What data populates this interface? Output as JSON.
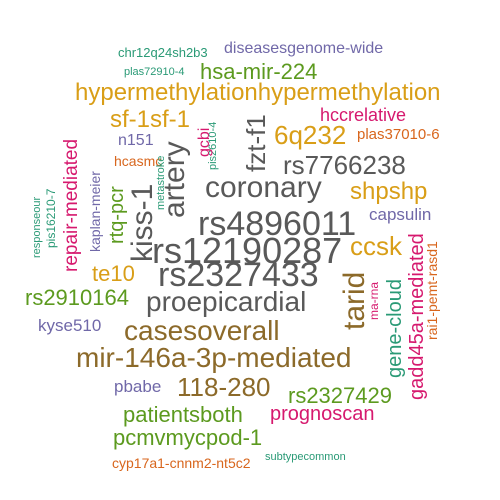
{
  "colors": {
    "darkgray": "#595959",
    "brown": "#8c6a2a",
    "gold": "#d99e17",
    "green": "#5c9a1f",
    "magenta": "#d6196e",
    "orange": "#d8661d",
    "purple": "#7068a8",
    "teal": "#2a9a76"
  },
  "words": [
    {
      "text": "chr12q24sh2b3",
      "color": "teal"
    },
    {
      "text": "diseasesgenome-wide",
      "color": "purple"
    },
    {
      "text": "plas72910-4",
      "color": "teal"
    },
    {
      "text": "hsa-mir-224",
      "color": "green"
    },
    {
      "text": "hypermethylationhypermethylation",
      "color": "gold"
    },
    {
      "text": "sf-1sf-1",
      "color": "gold"
    },
    {
      "text": "hccrelative",
      "color": "magenta"
    },
    {
      "text": "6q232",
      "color": "gold"
    },
    {
      "text": "plas37010-6",
      "color": "orange"
    },
    {
      "text": "repair-mediated",
      "color": "magenta"
    },
    {
      "text": "kaplan-meier",
      "color": "purple"
    },
    {
      "text": "n151",
      "color": "purple"
    },
    {
      "text": "hcasmc",
      "color": "orange"
    },
    {
      "text": "metastroke",
      "color": "teal"
    },
    {
      "text": "pis2610-4",
      "color": "teal"
    },
    {
      "text": "gcbi",
      "color": "magenta"
    },
    {
      "text": "fzt-f1",
      "color": "darkgray"
    },
    {
      "text": "artery",
      "color": "darkgray"
    },
    {
      "text": "coronary",
      "color": "darkgray"
    },
    {
      "text": "rs7766238",
      "color": "darkgray"
    },
    {
      "text": "shpshp",
      "color": "gold"
    },
    {
      "text": "responseour",
      "color": "teal"
    },
    {
      "text": "pis16210-7",
      "color": "teal"
    },
    {
      "text": "rtq-pcr",
      "color": "green"
    },
    {
      "text": "kiss-1",
      "color": "darkgray"
    },
    {
      "text": "rs4896011",
      "color": "darkgray"
    },
    {
      "text": "capsulin",
      "color": "purple"
    },
    {
      "text": "rs12190287",
      "color": "darkgray"
    },
    {
      "text": "ccsk",
      "color": "gold"
    },
    {
      "text": "rai1-pemt-rasd1",
      "color": "orange"
    },
    {
      "text": "te10",
      "color": "gold"
    },
    {
      "text": "rs2327433",
      "color": "darkgray"
    },
    {
      "text": "tarid",
      "color": "brown"
    },
    {
      "text": "ma-rna",
      "color": "magenta"
    },
    {
      "text": "rs2910164",
      "color": "green"
    },
    {
      "text": "proepicardial",
      "color": "darkgray"
    },
    {
      "text": "gene-cloud",
      "color": "teal"
    },
    {
      "text": "gadd45a-mediated",
      "color": "magenta"
    },
    {
      "text": "kyse510",
      "color": "purple"
    },
    {
      "text": "casesoverall",
      "color": "brown"
    },
    {
      "text": "mir-146a-3p-mediated",
      "color": "brown"
    },
    {
      "text": "pbabe",
      "color": "purple"
    },
    {
      "text": "118-280",
      "color": "brown"
    },
    {
      "text": "rs2327429",
      "color": "green"
    },
    {
      "text": "prognoscan",
      "color": "magenta"
    },
    {
      "text": "patientsboth",
      "color": "green"
    },
    {
      "text": "pcmvmycpod-1",
      "color": "green"
    },
    {
      "text": "cyp17a1-cnnm2-nt5c2",
      "color": "orange"
    },
    {
      "text": "subtypecommon",
      "color": "teal"
    }
  ]
}
